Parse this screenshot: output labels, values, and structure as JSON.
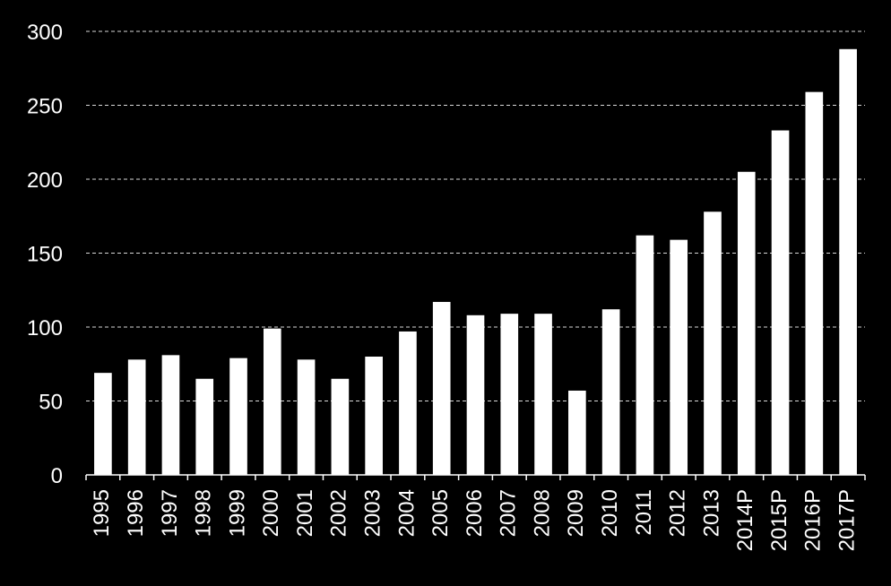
{
  "chart_data": {
    "type": "bar",
    "categories": [
      "1995",
      "1996",
      "1997",
      "1998",
      "1999",
      "2000",
      "2001",
      "2002",
      "2003",
      "2004",
      "2005",
      "2006",
      "2007",
      "2008",
      "2009",
      "2010",
      "2011",
      "2012",
      "2013",
      "2014P",
      "2015P",
      "2016P",
      "2017P"
    ],
    "values": [
      69,
      78,
      81,
      65,
      79,
      99,
      78,
      65,
      80,
      97,
      117,
      108,
      109,
      109,
      57,
      112,
      162,
      159,
      178,
      205,
      233,
      259,
      288
    ],
    "yticks": [
      0,
      50,
      100,
      150,
      200,
      250,
      300
    ],
    "ylim": [
      0,
      300
    ],
    "grid": true,
    "colors": {
      "background": "#000000",
      "bar": "#ffffff",
      "text": "#ffffff"
    }
  }
}
